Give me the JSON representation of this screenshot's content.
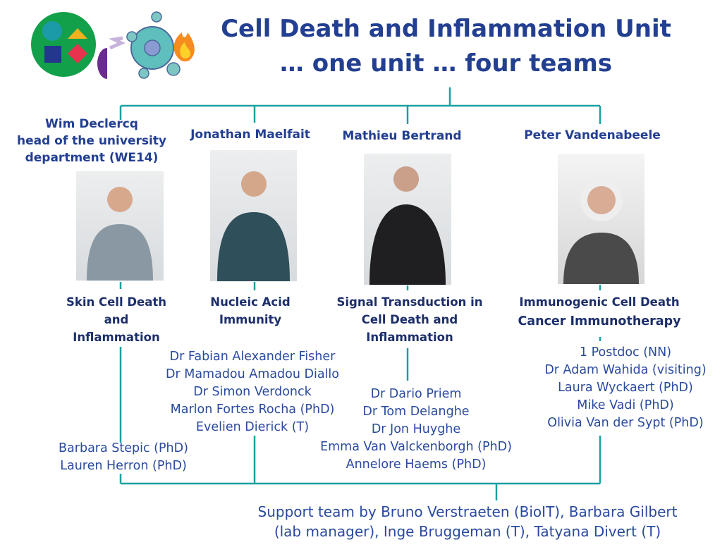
{
  "header": {
    "title_line1": "Cell Death and Inflammation Unit",
    "title_line2": "… one unit … four teams"
  },
  "colors": {
    "title": "#233f91",
    "lines": "#1aa0a0",
    "text": "#2a4a9e"
  },
  "teams": [
    {
      "leader_lines": [
        "Wim Declercq",
        "head of the university",
        "department (WE14)"
      ],
      "topic_lines": [
        "Skin Cell Death",
        "and",
        "Inflammation"
      ],
      "members": [
        "Barbara Stepic (PhD)",
        "Lauren Herron (PhD)"
      ]
    },
    {
      "leader_lines": [
        "Jonathan Maelfait"
      ],
      "topic_lines": [
        "Nucleic Acid",
        "Immunity"
      ],
      "members": [
        "Dr Fabian Alexander Fisher",
        "Dr Mamadou Amadou Diallo",
        "Dr Simon Verdonck",
        "Marlon Fortes Rocha (PhD)",
        "Evelien Dierick (T)"
      ]
    },
    {
      "leader_lines": [
        "Mathieu Bertrand"
      ],
      "topic_lines": [
        "Signal Transduction in",
        "Cell Death and",
        "Inflammation"
      ],
      "members": [
        "Dr Dario Priem",
        "Dr Tom Delanghe",
        "Dr Jon Huyghe",
        "Emma Van Valckenborgh (PhD)",
        "Annelore Haems (PhD)"
      ]
    },
    {
      "leader_lines": [
        "Peter Vandenabeele"
      ],
      "topic_lines": [
        "Immunogenic Cell Death",
        "Cancer Immunotherapy"
      ],
      "members": [
        "1 Postdoc (NN)",
        "Dr Adam Wahida (visiting)",
        "Laura Wyckaert (PhD)",
        "Mike Vadi (PhD)",
        "Olivia Van der Sypt (PhD)"
      ]
    }
  ],
  "support": {
    "line1": "Support team by Bruno Verstraeten (BioIT), Barbara Gilbert",
    "line2": "(lab manager), Inge Bruggeman (T), Tatyana Divert (T)"
  }
}
